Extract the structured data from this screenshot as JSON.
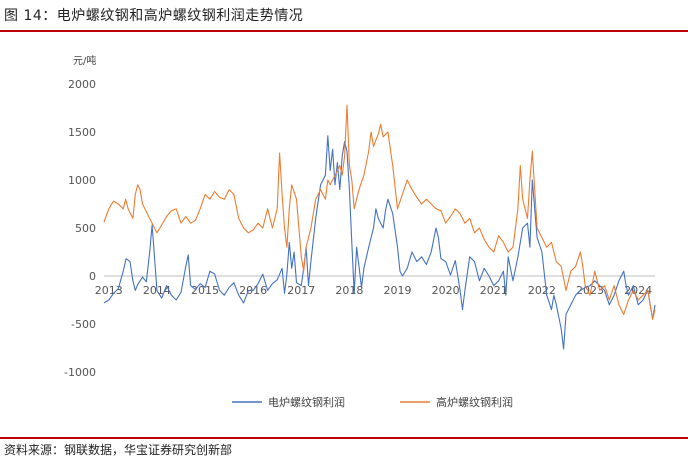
{
  "figure": {
    "title": "图 14：电炉螺纹钢和高炉螺纹钢利润走势情况",
    "source": "资料来源：钢联数据，华宝证券研究创新部"
  },
  "colors": {
    "accent_rule": "#c00000",
    "series_electric": "#4472c4",
    "series_blast": "#ed7d31"
  },
  "chart_data": {
    "type": "line",
    "title": "",
    "ylabel": "元/吨",
    "xlabel": "",
    "ylim": [
      -1000,
      2000
    ],
    "yticks": [
      -1000,
      -500,
      0,
      500,
      1000,
      1500,
      2000
    ],
    "xlim": [
      2012.9,
      2024.35
    ],
    "xticks": [
      2013,
      2014,
      2015,
      2016,
      2017,
      2018,
      2019,
      2020,
      2021,
      2022,
      2023,
      2024
    ],
    "xtick_labels": [
      "2013",
      "2014",
      "2015",
      "2016",
      "2017",
      "2018",
      "2019",
      "2020",
      "2021",
      "2022",
      "2023",
      "2024"
    ],
    "grid": false,
    "legend_position": "bottom",
    "series": [
      {
        "name": "电炉螺纹钢利润",
        "color": "#4472c4",
        "points": [
          [
            2012.9,
            -280
          ],
          [
            2013.0,
            -250
          ],
          [
            2013.1,
            -180
          ],
          [
            2013.2,
            -130
          ],
          [
            2013.3,
            50
          ],
          [
            2013.36,
            180
          ],
          [
            2013.44,
            150
          ],
          [
            2013.5,
            -50
          ],
          [
            2013.55,
            -150
          ],
          [
            2013.6,
            -90
          ],
          [
            2013.7,
            -10
          ],
          [
            2013.78,
            -60
          ],
          [
            2013.85,
            250
          ],
          [
            2013.9,
            530
          ],
          [
            2013.95,
            200
          ],
          [
            2014.0,
            -150
          ],
          [
            2014.1,
            -230
          ],
          [
            2014.2,
            -100
          ],
          [
            2014.3,
            -200
          ],
          [
            2014.4,
            -250
          ],
          [
            2014.5,
            -170
          ],
          [
            2014.6,
            100
          ],
          [
            2014.65,
            220
          ],
          [
            2014.7,
            -100
          ],
          [
            2014.8,
            -140
          ],
          [
            2014.9,
            -80
          ],
          [
            2015.0,
            -120
          ],
          [
            2015.1,
            50
          ],
          [
            2015.2,
            20
          ],
          [
            2015.3,
            -150
          ],
          [
            2015.4,
            -200
          ],
          [
            2015.5,
            -120
          ],
          [
            2015.6,
            -70
          ],
          [
            2015.7,
            -200
          ],
          [
            2015.8,
            -280
          ],
          [
            2015.9,
            -150
          ],
          [
            2016.0,
            -150
          ],
          [
            2016.1,
            -80
          ],
          [
            2016.2,
            20
          ],
          [
            2016.3,
            -150
          ],
          [
            2016.4,
            -80
          ],
          [
            2016.5,
            -40
          ],
          [
            2016.6,
            80
          ],
          [
            2016.65,
            -180
          ],
          [
            2016.7,
            20
          ],
          [
            2016.75,
            350
          ],
          [
            2016.8,
            80
          ],
          [
            2016.85,
            250
          ],
          [
            2016.9,
            -70
          ],
          [
            2017.0,
            -100
          ],
          [
            2017.05,
            80
          ],
          [
            2017.1,
            300
          ],
          [
            2017.15,
            -100
          ],
          [
            2017.2,
            150
          ],
          [
            2017.3,
            600
          ],
          [
            2017.4,
            950
          ],
          [
            2017.5,
            1050
          ],
          [
            2017.55,
            1460
          ],
          [
            2017.6,
            1100
          ],
          [
            2017.65,
            1320
          ],
          [
            2017.7,
            950
          ],
          [
            2017.75,
            1180
          ],
          [
            2017.8,
            900
          ],
          [
            2017.85,
            1250
          ],
          [
            2017.9,
            1400
          ],
          [
            2017.95,
            1300
          ],
          [
            2018.0,
            900
          ],
          [
            2018.05,
            350
          ],
          [
            2018.1,
            -180
          ],
          [
            2018.15,
            300
          ],
          [
            2018.2,
            100
          ],
          [
            2018.25,
            -120
          ],
          [
            2018.3,
            80
          ],
          [
            2018.4,
            300
          ],
          [
            2018.5,
            500
          ],
          [
            2018.55,
            700
          ],
          [
            2018.6,
            600
          ],
          [
            2018.7,
            500
          ],
          [
            2018.75,
            680
          ],
          [
            2018.8,
            800
          ],
          [
            2018.9,
            650
          ],
          [
            2019.0,
            300
          ],
          [
            2019.05,
            50
          ],
          [
            2019.1,
            0
          ],
          [
            2019.2,
            80
          ],
          [
            2019.3,
            250
          ],
          [
            2019.4,
            150
          ],
          [
            2019.5,
            200
          ],
          [
            2019.6,
            120
          ],
          [
            2019.7,
            250
          ],
          [
            2019.8,
            500
          ],
          [
            2019.85,
            400
          ],
          [
            2019.9,
            180
          ],
          [
            2020.0,
            150
          ],
          [
            2020.1,
            10
          ],
          [
            2020.2,
            160
          ],
          [
            2020.3,
            -150
          ],
          [
            2020.35,
            -350
          ],
          [
            2020.4,
            -150
          ],
          [
            2020.5,
            200
          ],
          [
            2020.6,
            150
          ],
          [
            2020.7,
            -50
          ],
          [
            2020.8,
            80
          ],
          [
            2020.9,
            0
          ],
          [
            2021.0,
            -100
          ],
          [
            2021.1,
            -50
          ],
          [
            2021.2,
            50
          ],
          [
            2021.25,
            -200
          ],
          [
            2021.3,
            200
          ],
          [
            2021.4,
            -50
          ],
          [
            2021.5,
            200
          ],
          [
            2021.6,
            500
          ],
          [
            2021.7,
            550
          ],
          [
            2021.75,
            300
          ],
          [
            2021.8,
            1000
          ],
          [
            2021.85,
            700
          ],
          [
            2021.9,
            400
          ],
          [
            2022.0,
            250
          ],
          [
            2022.1,
            -200
          ],
          [
            2022.2,
            -350
          ],
          [
            2022.25,
            -200
          ],
          [
            2022.3,
            -300
          ],
          [
            2022.4,
            -550
          ],
          [
            2022.45,
            -760
          ],
          [
            2022.5,
            -400
          ],
          [
            2022.6,
            -300
          ],
          [
            2022.7,
            -200
          ],
          [
            2022.8,
            -150
          ],
          [
            2022.9,
            -120
          ],
          [
            2023.0,
            -100
          ],
          [
            2023.1,
            -50
          ],
          [
            2023.2,
            -100
          ],
          [
            2023.3,
            -150
          ],
          [
            2023.4,
            -300
          ],
          [
            2023.5,
            -200
          ],
          [
            2023.6,
            -50
          ],
          [
            2023.7,
            50
          ],
          [
            2023.75,
            -100
          ],
          [
            2023.8,
            -200
          ],
          [
            2023.9,
            -100
          ],
          [
            2024.0,
            -300
          ],
          [
            2024.1,
            -250
          ],
          [
            2024.2,
            -150
          ],
          [
            2024.3,
            -450
          ],
          [
            2024.35,
            -300
          ]
        ]
      },
      {
        "name": "高炉螺纹钢利润",
        "color": "#ed7d31",
        "points": [
          [
            2012.9,
            560
          ],
          [
            2013.0,
            700
          ],
          [
            2013.1,
            780
          ],
          [
            2013.2,
            750
          ],
          [
            2013.3,
            700
          ],
          [
            2013.35,
            800
          ],
          [
            2013.4,
            700
          ],
          [
            2013.5,
            600
          ],
          [
            2013.55,
            850
          ],
          [
            2013.6,
            950
          ],
          [
            2013.65,
            900
          ],
          [
            2013.7,
            750
          ],
          [
            2013.8,
            650
          ],
          [
            2013.9,
            550
          ],
          [
            2014.0,
            450
          ],
          [
            2014.1,
            530
          ],
          [
            2014.2,
            620
          ],
          [
            2014.3,
            680
          ],
          [
            2014.4,
            700
          ],
          [
            2014.5,
            550
          ],
          [
            2014.6,
            620
          ],
          [
            2014.7,
            550
          ],
          [
            2014.8,
            580
          ],
          [
            2014.9,
            700
          ],
          [
            2015.0,
            850
          ],
          [
            2015.1,
            800
          ],
          [
            2015.2,
            880
          ],
          [
            2015.3,
            820
          ],
          [
            2015.4,
            800
          ],
          [
            2015.5,
            900
          ],
          [
            2015.6,
            850
          ],
          [
            2015.7,
            600
          ],
          [
            2015.8,
            500
          ],
          [
            2015.9,
            450
          ],
          [
            2016.0,
            480
          ],
          [
            2016.1,
            550
          ],
          [
            2016.2,
            500
          ],
          [
            2016.3,
            700
          ],
          [
            2016.35,
            600
          ],
          [
            2016.4,
            500
          ],
          [
            2016.5,
            700
          ],
          [
            2016.55,
            1280
          ],
          [
            2016.6,
            850
          ],
          [
            2016.65,
            500
          ],
          [
            2016.7,
            300
          ],
          [
            2016.75,
            700
          ],
          [
            2016.8,
            950
          ],
          [
            2016.9,
            800
          ],
          [
            2017.0,
            200
          ],
          [
            2017.05,
            50
          ],
          [
            2017.1,
            300
          ],
          [
            2017.2,
            500
          ],
          [
            2017.3,
            800
          ],
          [
            2017.4,
            900
          ],
          [
            2017.5,
            800
          ],
          [
            2017.55,
            1000
          ],
          [
            2017.6,
            950
          ],
          [
            2017.7,
            1050
          ],
          [
            2017.8,
            1150
          ],
          [
            2017.85,
            1050
          ],
          [
            2017.9,
            1250
          ],
          [
            2017.95,
            1780
          ],
          [
            2018.0,
            1150
          ],
          [
            2018.05,
            1000
          ],
          [
            2018.1,
            700
          ],
          [
            2018.2,
            900
          ],
          [
            2018.3,
            1050
          ],
          [
            2018.4,
            1300
          ],
          [
            2018.45,
            1500
          ],
          [
            2018.5,
            1350
          ],
          [
            2018.6,
            1480
          ],
          [
            2018.65,
            1580
          ],
          [
            2018.7,
            1450
          ],
          [
            2018.8,
            1500
          ],
          [
            2018.9,
            1150
          ],
          [
            2019.0,
            700
          ],
          [
            2019.1,
            850
          ],
          [
            2019.2,
            1000
          ],
          [
            2019.3,
            900
          ],
          [
            2019.4,
            820
          ],
          [
            2019.5,
            750
          ],
          [
            2019.6,
            800
          ],
          [
            2019.7,
            750
          ],
          [
            2019.8,
            700
          ],
          [
            2019.9,
            680
          ],
          [
            2020.0,
            550
          ],
          [
            2020.1,
            620
          ],
          [
            2020.2,
            700
          ],
          [
            2020.3,
            650
          ],
          [
            2020.4,
            550
          ],
          [
            2020.5,
            600
          ],
          [
            2020.6,
            450
          ],
          [
            2020.7,
            500
          ],
          [
            2020.8,
            380
          ],
          [
            2020.9,
            300
          ],
          [
            2021.0,
            250
          ],
          [
            2021.1,
            420
          ],
          [
            2021.2,
            350
          ],
          [
            2021.3,
            250
          ],
          [
            2021.4,
            300
          ],
          [
            2021.5,
            700
          ],
          [
            2021.55,
            1150
          ],
          [
            2021.6,
            800
          ],
          [
            2021.7,
            600
          ],
          [
            2021.75,
            1000
          ],
          [
            2021.8,
            1300
          ],
          [
            2021.85,
            900
          ],
          [
            2021.9,
            500
          ],
          [
            2022.0,
            400
          ],
          [
            2022.1,
            300
          ],
          [
            2022.2,
            350
          ],
          [
            2022.3,
            150
          ],
          [
            2022.4,
            100
          ],
          [
            2022.5,
            -150
          ],
          [
            2022.6,
            50
          ],
          [
            2022.7,
            100
          ],
          [
            2022.8,
            250
          ],
          [
            2022.85,
            100
          ],
          [
            2022.9,
            -100
          ],
          [
            2023.0,
            -200
          ],
          [
            2023.1,
            50
          ],
          [
            2023.2,
            -150
          ],
          [
            2023.3,
            -100
          ],
          [
            2023.4,
            -250
          ],
          [
            2023.5,
            -100
          ],
          [
            2023.6,
            -300
          ],
          [
            2023.7,
            -400
          ],
          [
            2023.8,
            -250
          ],
          [
            2023.9,
            -150
          ],
          [
            2024.0,
            -250
          ],
          [
            2024.1,
            -200
          ],
          [
            2024.2,
            -150
          ],
          [
            2024.3,
            -450
          ],
          [
            2024.35,
            -350
          ]
        ]
      }
    ]
  }
}
